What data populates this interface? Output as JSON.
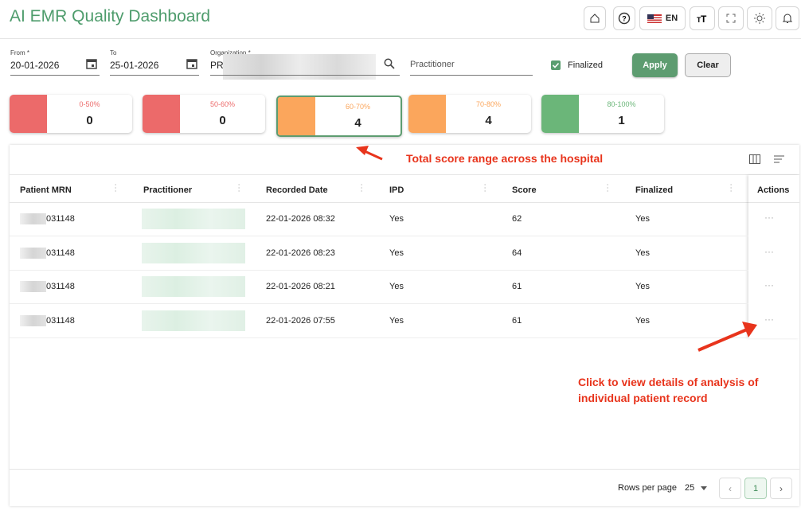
{
  "header": {
    "title": "AI EMR Quality Dashboard",
    "language": "EN"
  },
  "filters": {
    "from_label": "From *",
    "from_value": "20-01-2026",
    "to_label": "To",
    "to_value": "25-01-2026",
    "organization_label": "Organization *",
    "organization_value": "PR",
    "practitioner_placeholder": "Practitioner",
    "finalized_label": "Finalized",
    "apply": "Apply",
    "clear": "Clear"
  },
  "score_cards": [
    {
      "range": "0-50%",
      "count": 0,
      "color": "#ec6a6a",
      "selected": false
    },
    {
      "range": "50-60%",
      "count": 0,
      "color": "#ec6a6a",
      "selected": false
    },
    {
      "range": "60-70%",
      "count": 4,
      "color": "#fba65c",
      "selected": true
    },
    {
      "range": "70-80%",
      "count": 4,
      "color": "#fba65c",
      "selected": false
    },
    {
      "range": "80-100%",
      "count": 1,
      "color": "#6bb679",
      "selected": false
    }
  ],
  "annotations": [
    "Total score range across the hospital",
    "Click to view details of analysis of individual patient record"
  ],
  "table": {
    "columns": [
      "Patient MRN",
      "Practitioner",
      "Recorded Date",
      "IPD",
      "Score",
      "Finalized",
      "Actions"
    ],
    "rows": [
      {
        "mrn": "031148",
        "recorded_date": "22-01-2026 08:32",
        "ipd": "Yes",
        "score": 62,
        "finalized": "Yes"
      },
      {
        "mrn": "031148",
        "recorded_date": "22-01-2026 08:23",
        "ipd": "Yes",
        "score": 64,
        "finalized": "Yes"
      },
      {
        "mrn": "031148",
        "recorded_date": "22-01-2026 08:21",
        "ipd": "Yes",
        "score": 61,
        "finalized": "Yes"
      },
      {
        "mrn": "031148",
        "recorded_date": "22-01-2026 07:55",
        "ipd": "Yes",
        "score": 61,
        "finalized": "Yes"
      }
    ]
  },
  "pagination": {
    "rows_per_page_label": "Rows per page",
    "rows_per_page": 25,
    "page": 1
  }
}
